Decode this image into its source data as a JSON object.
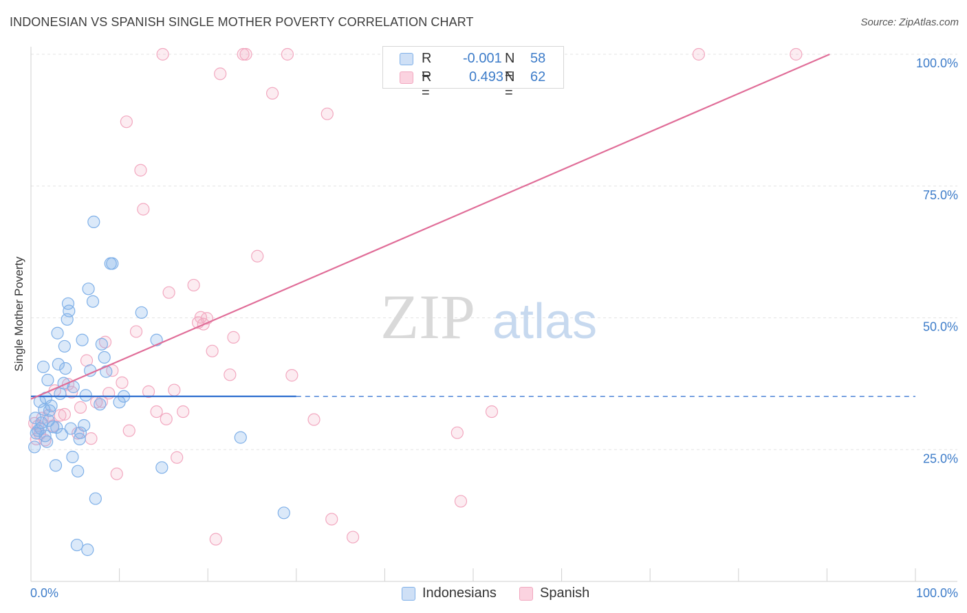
{
  "header": {
    "title": "INDONESIAN VS SPANISH SINGLE MOTHER POVERTY CORRELATION CHART",
    "source": "Source: ZipAtlas.com"
  },
  "legend": {
    "indonesians": {
      "r_label": "R =",
      "r_value": "-0.001",
      "n_label": "N =",
      "n_value": "58"
    },
    "spanish": {
      "r_label": "R =",
      "r_value": "0.493",
      "n_label": "N =",
      "n_value": "62"
    }
  },
  "bottom_legend": {
    "indonesians": "Indonesians",
    "spanish": "Spanish"
  },
  "watermark": {
    "zip": "ZIP",
    "atlas": "atlas"
  },
  "colors": {
    "blue": "#7fb0e8",
    "blue_line": "#2f6fcf",
    "pink": "#f2a7bf",
    "pink_line": "#e06d98",
    "tick_text": "#3d7cc9"
  },
  "chart_data": {
    "type": "scatter",
    "title": "INDONESIAN VS SPANISH SINGLE MOTHER POVERTY CORRELATION CHART",
    "xlabel": "",
    "ylabel": "Single Mother Poverty",
    "xlim": [
      0,
      100
    ],
    "ylim": [
      0,
      100
    ],
    "x_tick_labels": [
      "0.0%",
      "100.0%"
    ],
    "y_ticks": [
      25,
      50,
      75,
      100
    ],
    "y_tick_labels": [
      "25.0%",
      "50.0%",
      "75.0%",
      "100.0%"
    ],
    "series": [
      {
        "name": "Indonesians",
        "r": -0.001,
        "n": 58,
        "trend": {
          "x0": 0,
          "y0": 35.1,
          "x1": 30,
          "y1": 35.1,
          "dashed_to": 100
        },
        "points": [
          [
            0.4,
            25.5
          ],
          [
            0.6,
            28.1
          ],
          [
            0.8,
            28.6
          ],
          [
            1.0,
            34.1
          ],
          [
            1.1,
            29.0
          ],
          [
            1.2,
            30.1
          ],
          [
            1.4,
            40.7
          ],
          [
            1.5,
            32.6
          ],
          [
            1.6,
            27.6
          ],
          [
            1.7,
            34.8
          ],
          [
            1.8,
            26.5
          ],
          [
            1.9,
            38.2
          ],
          [
            2.1,
            32.4
          ],
          [
            2.3,
            33.3
          ],
          [
            2.5,
            29.3
          ],
          [
            2.8,
            22.0
          ],
          [
            2.9,
            29.2
          ],
          [
            3.0,
            47.1
          ],
          [
            3.1,
            41.2
          ],
          [
            3.3,
            35.6
          ],
          [
            3.5,
            27.9
          ],
          [
            3.7,
            37.6
          ],
          [
            3.8,
            44.6
          ],
          [
            3.9,
            40.4
          ],
          [
            4.1,
            49.7
          ],
          [
            4.2,
            52.7
          ],
          [
            4.3,
            51.3
          ],
          [
            4.5,
            29.0
          ],
          [
            4.7,
            23.6
          ],
          [
            4.8,
            36.9
          ],
          [
            5.2,
            6.9
          ],
          [
            5.3,
            20.9
          ],
          [
            5.6,
            28.2
          ],
          [
            5.8,
            45.8
          ],
          [
            6.0,
            29.6
          ],
          [
            6.2,
            35.3
          ],
          [
            6.4,
            6.0
          ],
          [
            6.5,
            55.5
          ],
          [
            6.7,
            40.0
          ],
          [
            7.0,
            53.1
          ],
          [
            7.1,
            68.2
          ],
          [
            7.3,
            15.7
          ],
          [
            7.8,
            33.6
          ],
          [
            8.0,
            45.0
          ],
          [
            8.3,
            42.5
          ],
          [
            8.5,
            39.8
          ],
          [
            9.0,
            60.3
          ],
          [
            9.2,
            60.3
          ],
          [
            10.0,
            34.0
          ],
          [
            10.5,
            35.1
          ],
          [
            12.5,
            51.0
          ],
          [
            14.2,
            45.8
          ],
          [
            14.8,
            21.6
          ],
          [
            23.7,
            27.3
          ],
          [
            28.6,
            13.0
          ],
          [
            0.5,
            31.0
          ],
          [
            2.0,
            30.5
          ],
          [
            5.5,
            27.0
          ]
        ]
      },
      {
        "name": "Spanish",
        "r": 0.493,
        "n": 62,
        "trend": {
          "x0": 0,
          "y0": 34.6,
          "x1": 90.3,
          "y1": 100
        },
        "points": [
          [
            0.4,
            30.0
          ],
          [
            0.6,
            27.0
          ],
          [
            0.8,
            29.5
          ],
          [
            1.0,
            28.0
          ],
          [
            1.3,
            31.0
          ],
          [
            1.6,
            26.8
          ],
          [
            2.0,
            31.5
          ],
          [
            2.5,
            29.5
          ],
          [
            2.7,
            36.2
          ],
          [
            3.3,
            31.5
          ],
          [
            3.8,
            31.7
          ],
          [
            4.2,
            37.4
          ],
          [
            4.6,
            35.9
          ],
          [
            5.3,
            28.1
          ],
          [
            5.6,
            33.0
          ],
          [
            6.3,
            41.9
          ],
          [
            6.8,
            27.1
          ],
          [
            7.4,
            34.0
          ],
          [
            8.0,
            34.1
          ],
          [
            8.4,
            45.4
          ],
          [
            8.8,
            35.7
          ],
          [
            9.2,
            40.0
          ],
          [
            9.7,
            20.4
          ],
          [
            10.3,
            37.7
          ],
          [
            10.8,
            87.2
          ],
          [
            11.1,
            28.6
          ],
          [
            11.9,
            47.4
          ],
          [
            12.4,
            78.0
          ],
          [
            12.7,
            70.6
          ],
          [
            13.3,
            36.0
          ],
          [
            14.2,
            32.2
          ],
          [
            14.9,
            100.0
          ],
          [
            15.3,
            30.8
          ],
          [
            15.6,
            54.8
          ],
          [
            16.2,
            36.3
          ],
          [
            16.5,
            23.5
          ],
          [
            17.2,
            32.2
          ],
          [
            18.4,
            56.2
          ],
          [
            18.9,
            49.1
          ],
          [
            19.2,
            50.1
          ],
          [
            19.5,
            48.8
          ],
          [
            19.9,
            49.9
          ],
          [
            20.5,
            43.7
          ],
          [
            20.9,
            8.0
          ],
          [
            21.4,
            96.3
          ],
          [
            22.5,
            39.2
          ],
          [
            22.9,
            46.3
          ],
          [
            24.0,
            100.0
          ],
          [
            24.3,
            100.0
          ],
          [
            25.6,
            61.7
          ],
          [
            27.3,
            92.6
          ],
          [
            29.0,
            100.0
          ],
          [
            29.5,
            39.1
          ],
          [
            32.0,
            30.7
          ],
          [
            33.5,
            88.7
          ],
          [
            34.0,
            11.8
          ],
          [
            36.4,
            8.4
          ],
          [
            48.2,
            28.2
          ],
          [
            48.6,
            15.2
          ],
          [
            52.1,
            32.2
          ],
          [
            75.5,
            100.0
          ],
          [
            86.5,
            100.0
          ]
        ]
      }
    ]
  }
}
